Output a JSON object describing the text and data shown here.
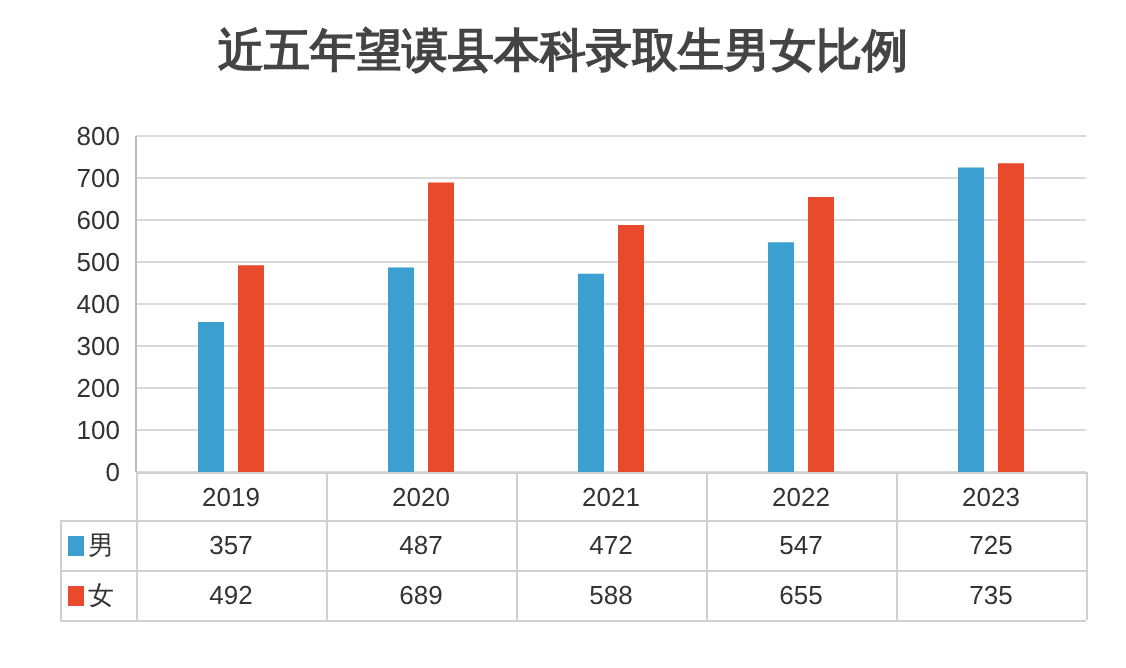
{
  "chart_data": {
    "type": "bar",
    "title": "近五年望谟县本科录取生男女比例",
    "categories": [
      "2019",
      "2020",
      "2021",
      "2022",
      "2023"
    ],
    "series": [
      {
        "name": "男",
        "color": "#3b9fd0",
        "values": [
          357,
          487,
          472,
          547,
          725
        ]
      },
      {
        "name": "女",
        "color": "#ea4a2c",
        "values": [
          492,
          689,
          588,
          655,
          735
        ]
      }
    ],
    "ylim": [
      0,
      800
    ],
    "yticks": [
      0,
      100,
      200,
      300,
      400,
      500,
      600,
      700,
      800
    ],
    "grid": "y",
    "legend": "bottom",
    "data_labels": true
  }
}
